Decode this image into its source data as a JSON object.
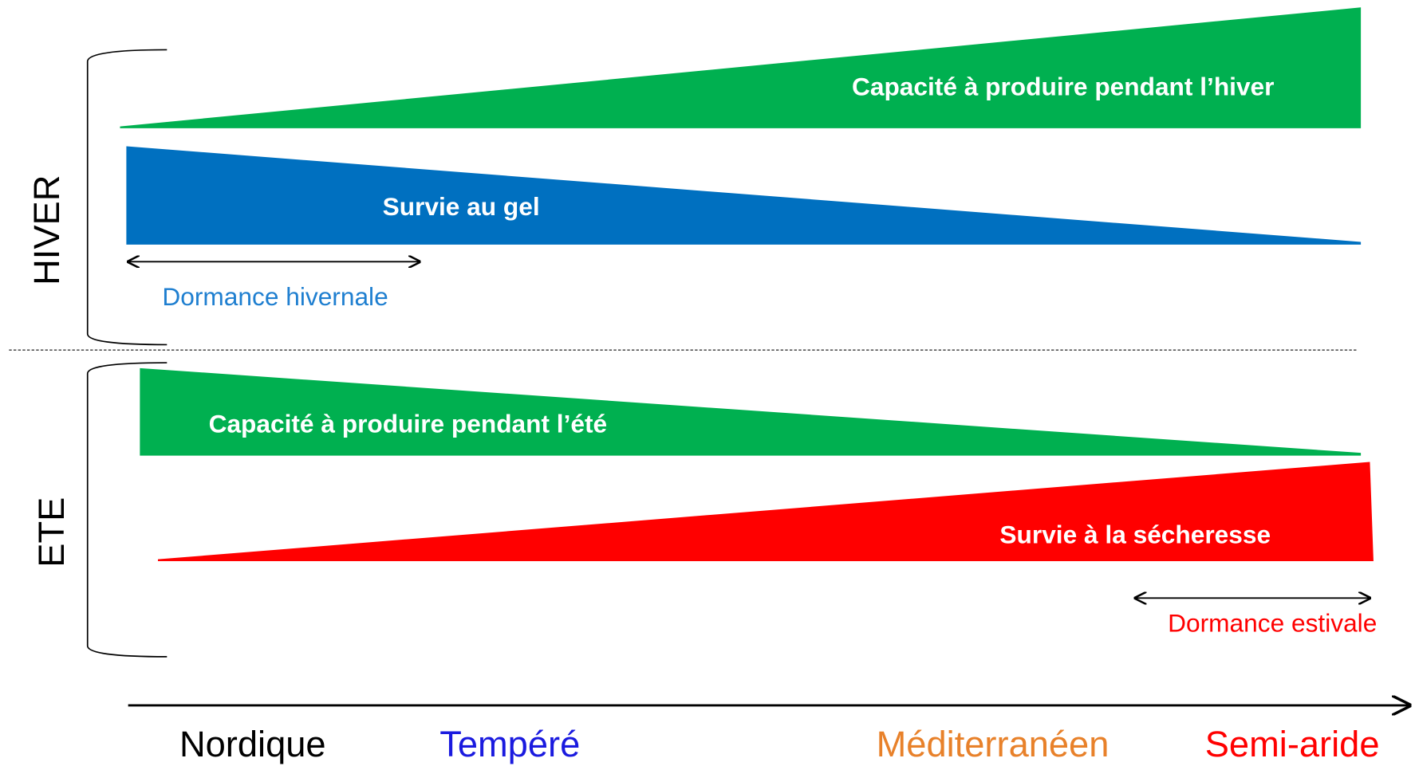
{
  "sections": [
    {
      "label": "HIVER"
    },
    {
      "label": "ETE"
    }
  ],
  "bands": [
    {
      "label": "Capacité à produire pendant l’hiver"
    },
    {
      "label": "Survie au gel"
    },
    {
      "label": "Capacité à produire pendant l’été"
    },
    {
      "label": "Survie à la sécheresse"
    }
  ],
  "dormancy": [
    {
      "label": "Dormance hivernale"
    },
    {
      "label": "Dormance estivale"
    }
  ],
  "axis": {
    "labels": [
      "Nordique",
      "Tempéré",
      "Méditerranéen",
      "Semi-aride"
    ]
  }
}
